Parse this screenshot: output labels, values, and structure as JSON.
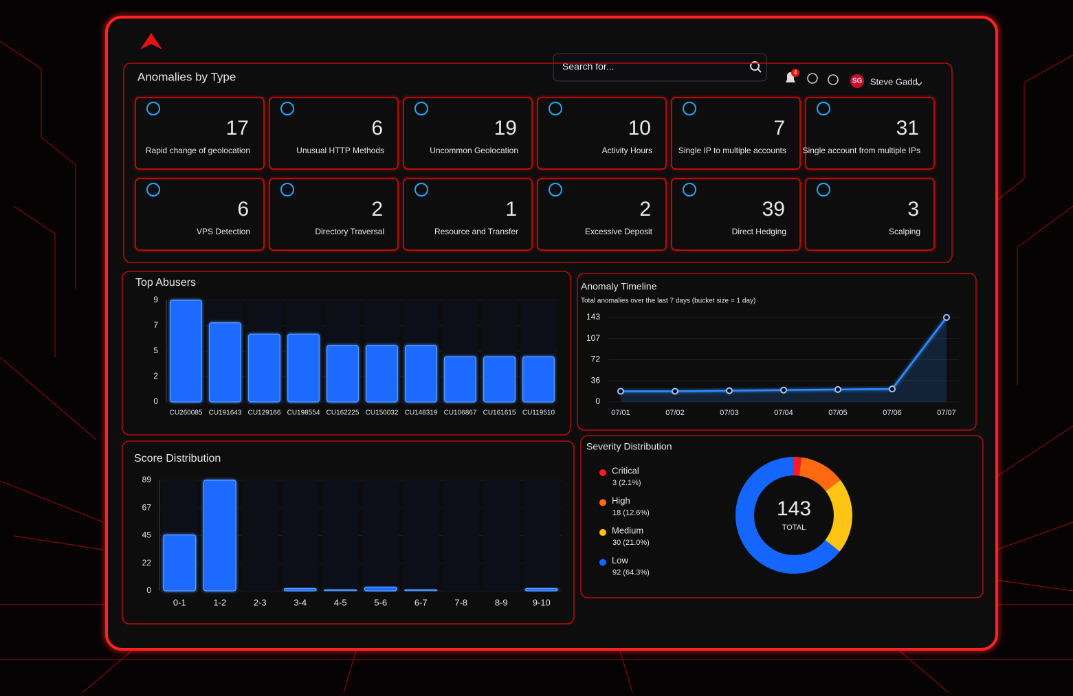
{
  "header": {
    "search_placeholder": "Search for...",
    "notification_count": 4,
    "user_initials": "SG",
    "user_name": "Steve Gadd"
  },
  "anomalies": {
    "title": "Anomalies by Type",
    "cards": [
      {
        "count": 17,
        "label": "Rapid change of geolocation"
      },
      {
        "count": 6,
        "label": "Unusual HTTP Methods"
      },
      {
        "count": 19,
        "label": "Uncommon Geolocation"
      },
      {
        "count": 10,
        "label": "Activity Hours"
      },
      {
        "count": 7,
        "label": "Single IP to multiple accounts"
      },
      {
        "count": 31,
        "label": "Single account from multiple IPs"
      },
      {
        "count": 6,
        "label": "VPS Detection"
      },
      {
        "count": 2,
        "label": "Directory Traversal"
      },
      {
        "count": 1,
        "label": "Resource and Transfer"
      },
      {
        "count": 2,
        "label": "Excessive Deposit"
      },
      {
        "count": 39,
        "label": "Direct Hedging"
      },
      {
        "count": 3,
        "label": "Scalping"
      }
    ]
  },
  "chart_data": [
    {
      "type": "bar",
      "title": "Top Abusers",
      "categories": [
        "CU260085",
        "CU191643",
        "CU129166",
        "CU198554",
        "CU162225",
        "CU150032",
        "CU148319",
        "CU106867",
        "CU161615",
        "CU119510"
      ],
      "values": [
        9,
        7,
        6,
        6,
        5,
        5,
        5,
        4,
        4,
        4
      ],
      "color": "#1f6bff",
      "ylim": [
        0,
        9
      ],
      "yticks": [
        0,
        {
          "value": 2.25,
          "label": "2"
        },
        {
          "value": 4.5,
          "label": "5"
        },
        {
          "value": 6.75,
          "label": "7"
        },
        9
      ]
    },
    {
      "type": "line",
      "title": "Anomaly Timeline",
      "subtitle": "Total anomalies over the last 7 days (bucket size = 1 day)",
      "categories": [
        "07/01",
        "07/02",
        "07/03",
        "07/04",
        "07/05",
        "07/06",
        "07/07"
      ],
      "values": [
        18,
        18,
        19,
        20,
        21,
        22,
        143
      ],
      "color": "#2f8cff",
      "ylim": [
        0,
        143
      ],
      "yticks": [
        0,
        {
          "value": 35.75,
          "label": "36"
        },
        {
          "value": 71.5,
          "label": "72"
        },
        {
          "value": 107.25,
          "label": "107"
        },
        143
      ]
    },
    {
      "type": "bar",
      "title": "Score Distribution",
      "categories": [
        "0-1",
        "1-2",
        "2-3",
        "3-4",
        "4-5",
        "5-6",
        "6-7",
        "7-8",
        "8-9",
        "9-10"
      ],
      "values": [
        45,
        89,
        0,
        2,
        1,
        3,
        1,
        0,
        0,
        2
      ],
      "color": "#1f6bff",
      "ylim": [
        0,
        89
      ],
      "yticks": [
        0,
        {
          "value": 22.25,
          "label": "22"
        },
        {
          "value": 44.5,
          "label": "45"
        },
        {
          "value": 66.75,
          "label": "67"
        },
        89
      ]
    },
    {
      "type": "donut",
      "title": "Severity Distribution",
      "categories": [
        "Critical",
        "High",
        "Medium",
        "Low"
      ],
      "values": [
        3,
        18,
        30,
        92
      ],
      "value_labels": [
        "3 (2.1%)",
        "18 (12.6%)",
        "30 (21.0%)",
        "92 (64.3%)"
      ],
      "colors": [
        "#ff1a2a",
        "#ff6a10",
        "#ffc414",
        "#1565ff"
      ],
      "total": 143,
      "total_label": "TOTAL"
    }
  ]
}
